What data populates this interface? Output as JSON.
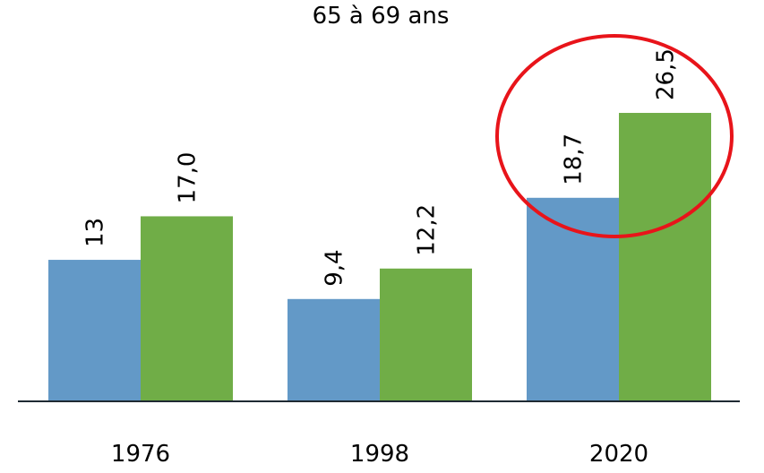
{
  "chart_data": {
    "type": "bar",
    "title": "65 à 69 ans",
    "categories": [
      "1976",
      "1998",
      "2020"
    ],
    "series": [
      {
        "color": "#6399c7",
        "values": [
          13,
          9.4,
          18.7
        ],
        "value_labels": [
          "13",
          "9,4",
          "18,7"
        ]
      },
      {
        "color": "#70ad47",
        "values": [
          17.0,
          12.2,
          26.5
        ],
        "value_labels": [
          "17,0",
          "12,2",
          "26,5"
        ]
      }
    ]
  }
}
